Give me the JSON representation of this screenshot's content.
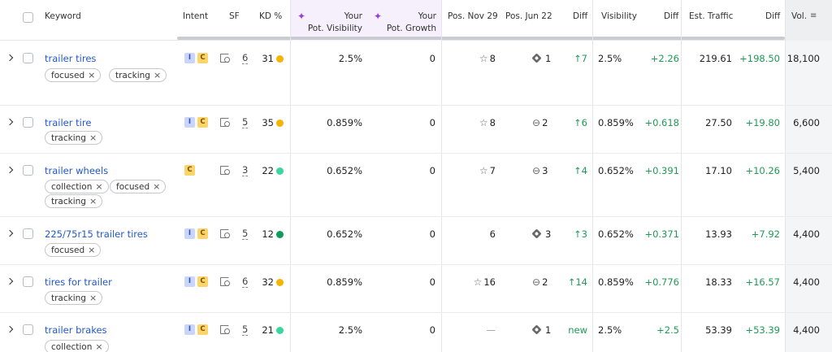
{
  "header": {
    "keyword": "Keyword",
    "intent": "Intent",
    "sf": "SF",
    "kd": "KD %",
    "pot_visibility_1": "Your",
    "pot_visibility_2": "Pot. Visibility",
    "pot_growth_1": "Your",
    "pot_growth_2": "Pot. Growth",
    "pos_nov": "Pos. Nov 29",
    "pos_jun": "Pos. Jun 22",
    "diff": "Diff",
    "visibility": "Visibility",
    "diff2": "Diff",
    "est_traffic": "Est. Traffic",
    "diff3": "Diff",
    "vol": "Vol."
  },
  "icons": {
    "sparkle": "sparkle-icon",
    "sort": "sort-icon",
    "tag_remove": "×",
    "up_arrow": "↑"
  },
  "colors": {
    "link": "#2259c9",
    "green": "#1f9a55",
    "kd_orange": "#f4b400",
    "kd_teal": "#3bd6a0",
    "kd_green": "#0f9b5c",
    "purple_header": "#f6f0fc"
  },
  "rows": [
    {
      "keyword": "trailer tires",
      "tags": [
        "focused",
        "tracking"
      ],
      "intent": [
        "I",
        "C"
      ],
      "sf": "6",
      "kd": "31",
      "kd_color": "#f4b400",
      "pot_vis": "2.5%",
      "pot_growth": "0",
      "pos_nov": "8",
      "pos_nov_icon": "star",
      "pos_jun": "1",
      "pos_jun_icon": "serp",
      "diff": "7",
      "visibility": "2.5%",
      "vis_diff": "+2.26",
      "traffic": "219.61",
      "traffic_diff": "+198.50",
      "vol": "18,100"
    },
    {
      "keyword": "trailer tire",
      "tags": [
        "tracking"
      ],
      "intent": [
        "I",
        "C"
      ],
      "sf": "5",
      "kd": "35",
      "kd_color": "#f4b400",
      "pot_vis": "0.859%",
      "pot_growth": "0",
      "pos_nov": "8",
      "pos_nov_icon": "star",
      "pos_jun": "2",
      "pos_jun_icon": "link",
      "diff": "6",
      "visibility": "0.859%",
      "vis_diff": "+0.618",
      "traffic": "27.50",
      "traffic_diff": "+19.80",
      "vol": "6,600"
    },
    {
      "keyword": "trailer wheels",
      "tags": [
        "collection",
        "focused",
        "tracking"
      ],
      "intent": [
        "C"
      ],
      "sf": "3",
      "kd": "22",
      "kd_color": "#3bd6a0",
      "pot_vis": "0.652%",
      "pot_growth": "0",
      "pos_nov": "7",
      "pos_nov_icon": "star",
      "pos_jun": "3",
      "pos_jun_icon": "link",
      "diff": "4",
      "visibility": "0.652%",
      "vis_diff": "+0.391",
      "traffic": "17.10",
      "traffic_diff": "+10.26",
      "vol": "5,400"
    },
    {
      "keyword": "225/75r15 trailer tires",
      "tags": [
        "focused"
      ],
      "intent": [
        "I",
        "C"
      ],
      "sf": "5",
      "kd": "12",
      "kd_color": "#0f9b5c",
      "pot_vis": "0.652%",
      "pot_growth": "0",
      "pos_nov": "6",
      "pos_nov_icon": "",
      "pos_jun": "3",
      "pos_jun_icon": "serp",
      "diff": "3",
      "visibility": "0.652%",
      "vis_diff": "+0.371",
      "traffic": "13.93",
      "traffic_diff": "+7.92",
      "vol": "4,400"
    },
    {
      "keyword": "tires for trailer",
      "tags": [
        "tracking"
      ],
      "intent": [
        "I",
        "C"
      ],
      "sf": "6",
      "kd": "32",
      "kd_color": "#f4b400",
      "pot_vis": "0.859%",
      "pot_growth": "0",
      "pos_nov": "16",
      "pos_nov_icon": "star",
      "pos_jun": "2",
      "pos_jun_icon": "link",
      "diff": "14",
      "visibility": "0.859%",
      "vis_diff": "+0.776",
      "traffic": "18.33",
      "traffic_diff": "+16.57",
      "vol": "4,400"
    },
    {
      "keyword": "trailer brakes",
      "tags": [
        "collection"
      ],
      "intent": [
        "I",
        "C"
      ],
      "sf": "5",
      "kd": "21",
      "kd_color": "#3bd6a0",
      "pot_vis": "2.5%",
      "pot_growth": "0",
      "pos_nov": "—",
      "pos_nov_icon": "",
      "pos_jun": "1",
      "pos_jun_icon": "serp",
      "diff": "new",
      "visibility": "2.5%",
      "vis_diff": "+2.5",
      "traffic": "53.39",
      "traffic_diff": "+53.39",
      "vol": "4,400"
    }
  ]
}
